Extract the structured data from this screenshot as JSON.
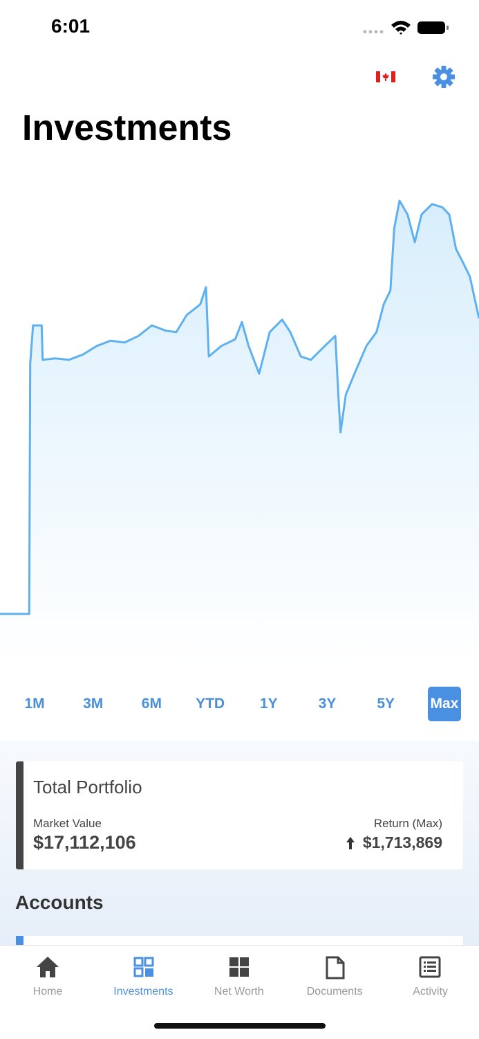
{
  "status_bar": {
    "time": "6:01"
  },
  "header": {
    "title": "Investments"
  },
  "chart_data": {
    "type": "area",
    "color": "#5eb0ef",
    "x": [
      0,
      2.5,
      4.9,
      6.1,
      6.3,
      6.9,
      8.7,
      8.9,
      11.5,
      14.4,
      17.3,
      20.2,
      23.1,
      26,
      28.9,
      31.7,
      34.6,
      36.8,
      39,
      41.8,
      43,
      43.6,
      46.2,
      49.1,
      50.5,
      51.9,
      54.1,
      56.3,
      58.9,
      60.6,
      62.8,
      64.9,
      67.8,
      70,
      70.7,
      71.1,
      72.2,
      74.3,
      76.5,
      78.6,
      80.1,
      81.5,
      82.3,
      83.4,
      85.1,
      86.6,
      88,
      90.2,
      92.4,
      93.8,
      95.2,
      96.7,
      98.1,
      100
    ],
    "values": [
      10.6,
      10.6,
      10.6,
      10.6,
      63,
      71,
      71,
      63.8,
      64.1,
      63.8,
      64.9,
      66.7,
      67.8,
      67.4,
      68.8,
      71,
      69.9,
      69.6,
      73.2,
      75.4,
      79,
      64.5,
      66.7,
      68.1,
      71.7,
      66.7,
      60.9,
      69.6,
      72.2,
      69.6,
      64.5,
      63.8,
      66.7,
      68.8,
      55.1,
      48.6,
      56.5,
      61.6,
      66.7,
      69.6,
      75.4,
      78.3,
      91.3,
      97.1,
      94.2,
      88.4,
      94.2,
      96.4,
      95.7,
      94.2,
      87,
      84.1,
      81.2,
      72.5
    ],
    "xlim": [
      0,
      100
    ],
    "ylim": [
      0,
      100
    ]
  },
  "ranges": {
    "options": [
      "1M",
      "3M",
      "6M",
      "YTD",
      "1Y",
      "3Y",
      "5Y",
      "Max"
    ],
    "selected": 7
  },
  "portfolio_card": {
    "title": "Total Portfolio",
    "market_value_label": "Market Value",
    "market_value": "$17,112,106",
    "return_label": "Return (Max)",
    "return_value": "$1,713,869"
  },
  "accounts": {
    "title": "Accounts"
  },
  "tab_bar": {
    "tabs": [
      "Home",
      "Investments",
      "Net Worth",
      "Documents",
      "Activity"
    ],
    "active": 1
  }
}
